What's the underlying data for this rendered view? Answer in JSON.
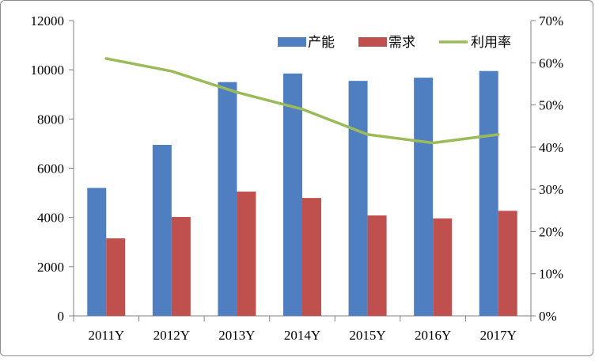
{
  "chart_data": {
    "type": "bar+line",
    "categories": [
      "2011Y",
      "2012Y",
      "2013Y",
      "2014Y",
      "2015Y",
      "2016Y",
      "2017Y"
    ],
    "series": [
      {
        "name": "产能",
        "type": "bar",
        "axis": "left",
        "color": "#4F7FC0",
        "values": [
          5200,
          6950,
          9500,
          9850,
          9550,
          9680,
          9950
        ]
      },
      {
        "name": "需求",
        "type": "bar",
        "axis": "left",
        "color": "#C0504D",
        "values": [
          3150,
          4020,
          5050,
          4790,
          4080,
          3960,
          4270
        ]
      },
      {
        "name": "利用率",
        "type": "line",
        "axis": "right",
        "color": "#9BBB59",
        "values": [
          0.61,
          0.58,
          0.53,
          0.49,
          0.43,
          0.41,
          0.43
        ]
      }
    ],
    "y_left": {
      "min": 0,
      "max": 12000,
      "step": 2000,
      "tick_labels": [
        "0",
        "2000",
        "4000",
        "6000",
        "8000",
        "10000",
        "12000"
      ]
    },
    "y_right": {
      "min": 0,
      "max": 0.7,
      "step": 0.1,
      "tick_labels": [
        "0%",
        "10%",
        "20%",
        "30%",
        "40%",
        "50%",
        "60%",
        "70%"
      ]
    },
    "legend_position": "top-right",
    "grid": false
  }
}
